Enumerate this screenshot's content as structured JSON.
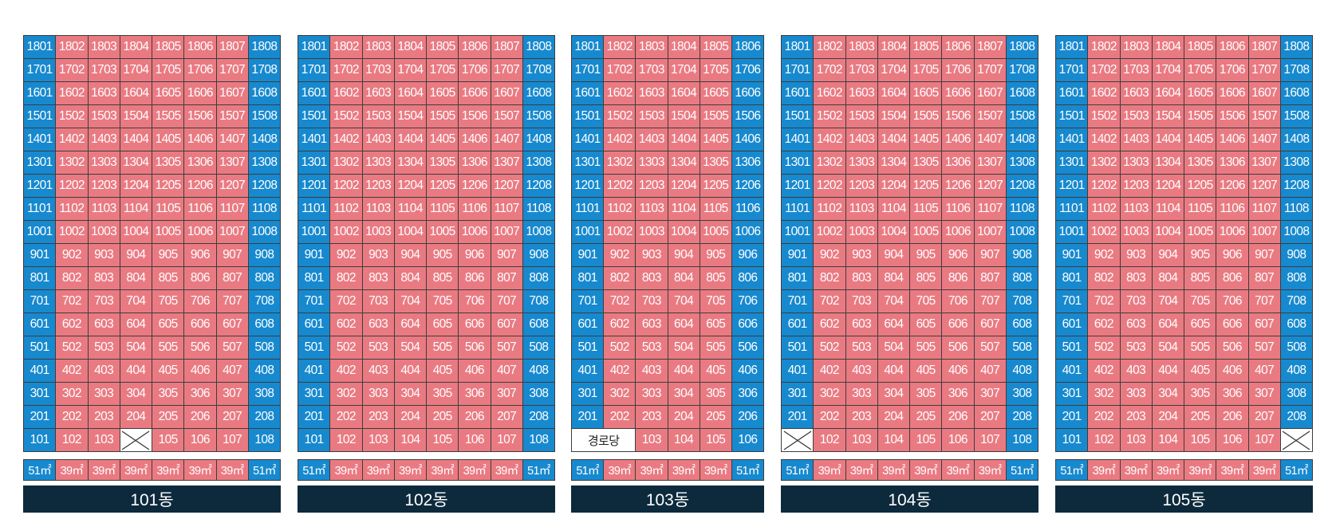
{
  "colors": {
    "end_unit": "#1789cf",
    "middle_unit": "#ea7a82",
    "label_bar": "#0d2a3c"
  },
  "buildings": [
    {
      "name": "101동",
      "sizes": [
        "51㎡",
        "39㎡",
        "39㎡",
        "39㎡",
        "39㎡",
        "39㎡",
        "39㎡",
        "51㎡"
      ],
      "rows": [
        [
          "1801",
          "1802",
          "1803",
          "1804",
          "1805",
          "1806",
          "1807",
          "1808"
        ],
        [
          "1701",
          "1702",
          "1703",
          "1704",
          "1705",
          "1706",
          "1707",
          "1708"
        ],
        [
          "1601",
          "1602",
          "1603",
          "1604",
          "1605",
          "1606",
          "1607",
          "1608"
        ],
        [
          "1501",
          "1502",
          "1503",
          "1504",
          "1505",
          "1506",
          "1507",
          "1508"
        ],
        [
          "1401",
          "1402",
          "1403",
          "1404",
          "1405",
          "1406",
          "1407",
          "1408"
        ],
        [
          "1301",
          "1302",
          "1303",
          "1304",
          "1305",
          "1306",
          "1307",
          "1308"
        ],
        [
          "1201",
          "1202",
          "1203",
          "1204",
          "1205",
          "1206",
          "1207",
          "1208"
        ],
        [
          "1101",
          "1102",
          "1103",
          "1104",
          "1105",
          "1106",
          "1107",
          "1108"
        ],
        [
          "1001",
          "1002",
          "1003",
          "1004",
          "1005",
          "1006",
          "1007",
          "1008"
        ],
        [
          "901",
          "902",
          "903",
          "904",
          "905",
          "906",
          "907",
          "908"
        ],
        [
          "801",
          "802",
          "803",
          "804",
          "805",
          "806",
          "807",
          "808"
        ],
        [
          "701",
          "702",
          "703",
          "704",
          "705",
          "706",
          "707",
          "708"
        ],
        [
          "601",
          "602",
          "603",
          "604",
          "605",
          "606",
          "607",
          "608"
        ],
        [
          "501",
          "502",
          "503",
          "504",
          "505",
          "506",
          "507",
          "508"
        ],
        [
          "401",
          "402",
          "403",
          "404",
          "405",
          "406",
          "407",
          "408"
        ],
        [
          "301",
          "302",
          "303",
          "304",
          "305",
          "306",
          "307",
          "308"
        ],
        [
          "201",
          "202",
          "203",
          "204",
          "205",
          "206",
          "207",
          "208"
        ],
        [
          "101",
          "102",
          "103",
          "X",
          "105",
          "106",
          "107",
          "108"
        ]
      ]
    },
    {
      "name": "102동",
      "sizes": [
        "51㎡",
        "39㎡",
        "39㎡",
        "39㎡",
        "39㎡",
        "39㎡",
        "39㎡",
        "51㎡"
      ],
      "rows": [
        [
          "1801",
          "1802",
          "1803",
          "1804",
          "1805",
          "1806",
          "1807",
          "1808"
        ],
        [
          "1701",
          "1702",
          "1703",
          "1704",
          "1705",
          "1706",
          "1707",
          "1708"
        ],
        [
          "1601",
          "1602",
          "1603",
          "1604",
          "1605",
          "1606",
          "1607",
          "1608"
        ],
        [
          "1501",
          "1502",
          "1503",
          "1504",
          "1505",
          "1506",
          "1507",
          "1508"
        ],
        [
          "1401",
          "1402",
          "1403",
          "1404",
          "1405",
          "1406",
          "1407",
          "1408"
        ],
        [
          "1301",
          "1302",
          "1303",
          "1304",
          "1305",
          "1306",
          "1307",
          "1308"
        ],
        [
          "1201",
          "1202",
          "1203",
          "1204",
          "1205",
          "1206",
          "1207",
          "1208"
        ],
        [
          "1101",
          "1102",
          "1103",
          "1104",
          "1105",
          "1106",
          "1107",
          "1108"
        ],
        [
          "1001",
          "1002",
          "1003",
          "1004",
          "1005",
          "1006",
          "1007",
          "1008"
        ],
        [
          "901",
          "902",
          "903",
          "904",
          "905",
          "906",
          "907",
          "908"
        ],
        [
          "801",
          "802",
          "803",
          "804",
          "805",
          "806",
          "807",
          "808"
        ],
        [
          "701",
          "702",
          "703",
          "704",
          "705",
          "706",
          "707",
          "708"
        ],
        [
          "601",
          "602",
          "603",
          "604",
          "605",
          "606",
          "607",
          "608"
        ],
        [
          "501",
          "502",
          "503",
          "504",
          "505",
          "506",
          "507",
          "508"
        ],
        [
          "401",
          "402",
          "403",
          "404",
          "405",
          "406",
          "407",
          "408"
        ],
        [
          "301",
          "302",
          "303",
          "304",
          "305",
          "306",
          "307",
          "308"
        ],
        [
          "201",
          "202",
          "203",
          "204",
          "205",
          "206",
          "207",
          "208"
        ],
        [
          "101",
          "102",
          "103",
          "104",
          "105",
          "106",
          "107",
          "108"
        ]
      ]
    },
    {
      "name": "103동",
      "sizes": [
        "51㎡",
        "39㎡",
        "39㎡",
        "39㎡",
        "39㎡",
        "51㎡"
      ],
      "rows": [
        [
          "1801",
          "1802",
          "1803",
          "1804",
          "1805",
          "1806"
        ],
        [
          "1701",
          "1702",
          "1703",
          "1704",
          "1705",
          "1706"
        ],
        [
          "1601",
          "1602",
          "1603",
          "1604",
          "1605",
          "1606"
        ],
        [
          "1501",
          "1502",
          "1503",
          "1504",
          "1505",
          "1506"
        ],
        [
          "1401",
          "1402",
          "1403",
          "1404",
          "1405",
          "1406"
        ],
        [
          "1301",
          "1302",
          "1303",
          "1304",
          "1305",
          "1306"
        ],
        [
          "1201",
          "1202",
          "1203",
          "1204",
          "1205",
          "1206"
        ],
        [
          "1101",
          "1102",
          "1103",
          "1104",
          "1105",
          "1106"
        ],
        [
          "1001",
          "1002",
          "1003",
          "1004",
          "1005",
          "1006"
        ],
        [
          "901",
          "902",
          "903",
          "904",
          "905",
          "906"
        ],
        [
          "801",
          "802",
          "803",
          "804",
          "805",
          "806"
        ],
        [
          "701",
          "702",
          "703",
          "704",
          "705",
          "706"
        ],
        [
          "601",
          "602",
          "603",
          "604",
          "605",
          "606"
        ],
        [
          "501",
          "502",
          "503",
          "504",
          "505",
          "506"
        ],
        [
          "401",
          "402",
          "403",
          "404",
          "405",
          "406"
        ],
        [
          "301",
          "302",
          "303",
          "304",
          "305",
          "306"
        ],
        [
          "201",
          "202",
          "203",
          "204",
          "205",
          "206"
        ],
        [
          "경로당",
          "103",
          "104",
          "105",
          "106"
        ]
      ]
    },
    {
      "name": "104동",
      "sizes": [
        "51㎡",
        "39㎡",
        "39㎡",
        "39㎡",
        "39㎡",
        "39㎡",
        "39㎡",
        "51㎡"
      ],
      "rows": [
        [
          "1801",
          "1802",
          "1803",
          "1804",
          "1805",
          "1806",
          "1807",
          "1808"
        ],
        [
          "1701",
          "1702",
          "1703",
          "1704",
          "1705",
          "1706",
          "1707",
          "1708"
        ],
        [
          "1601",
          "1602",
          "1603",
          "1604",
          "1605",
          "1606",
          "1607",
          "1608"
        ],
        [
          "1501",
          "1502",
          "1503",
          "1504",
          "1505",
          "1506",
          "1507",
          "1508"
        ],
        [
          "1401",
          "1402",
          "1403",
          "1404",
          "1405",
          "1406",
          "1407",
          "1408"
        ],
        [
          "1301",
          "1302",
          "1303",
          "1304",
          "1305",
          "1306",
          "1307",
          "1308"
        ],
        [
          "1201",
          "1202",
          "1203",
          "1204",
          "1205",
          "1206",
          "1207",
          "1208"
        ],
        [
          "1101",
          "1102",
          "1103",
          "1104",
          "1105",
          "1106",
          "1107",
          "1108"
        ],
        [
          "1001",
          "1002",
          "1003",
          "1004",
          "1005",
          "1006",
          "1007",
          "1008"
        ],
        [
          "901",
          "902",
          "903",
          "904",
          "905",
          "906",
          "907",
          "908"
        ],
        [
          "801",
          "802",
          "803",
          "804",
          "805",
          "806",
          "807",
          "808"
        ],
        [
          "701",
          "702",
          "703",
          "704",
          "705",
          "706",
          "707",
          "708"
        ],
        [
          "601",
          "602",
          "603",
          "604",
          "605",
          "606",
          "607",
          "608"
        ],
        [
          "501",
          "502",
          "503",
          "504",
          "505",
          "506",
          "507",
          "508"
        ],
        [
          "401",
          "402",
          "403",
          "404",
          "405",
          "406",
          "407",
          "408"
        ],
        [
          "301",
          "302",
          "303",
          "304",
          "305",
          "306",
          "307",
          "308"
        ],
        [
          "201",
          "202",
          "203",
          "204",
          "205",
          "206",
          "207",
          "208"
        ],
        [
          "X",
          "102",
          "103",
          "104",
          "105",
          "106",
          "107",
          "108"
        ]
      ]
    },
    {
      "name": "105동",
      "sizes": [
        "51㎡",
        "39㎡",
        "39㎡",
        "39㎡",
        "39㎡",
        "39㎡",
        "39㎡",
        "51㎡"
      ],
      "rows": [
        [
          "1801",
          "1802",
          "1803",
          "1804",
          "1805",
          "1806",
          "1807",
          "1808"
        ],
        [
          "1701",
          "1702",
          "1703",
          "1704",
          "1705",
          "1706",
          "1707",
          "1708"
        ],
        [
          "1601",
          "1602",
          "1603",
          "1604",
          "1605",
          "1606",
          "1607",
          "1608"
        ],
        [
          "1501",
          "1502",
          "1503",
          "1504",
          "1505",
          "1506",
          "1507",
          "1508"
        ],
        [
          "1401",
          "1402",
          "1403",
          "1404",
          "1405",
          "1406",
          "1407",
          "1408"
        ],
        [
          "1301",
          "1302",
          "1303",
          "1304",
          "1305",
          "1306",
          "1307",
          "1308"
        ],
        [
          "1201",
          "1202",
          "1203",
          "1204",
          "1205",
          "1206",
          "1207",
          "1208"
        ],
        [
          "1101",
          "1102",
          "1103",
          "1104",
          "1105",
          "1106",
          "1107",
          "1108"
        ],
        [
          "1001",
          "1002",
          "1003",
          "1004",
          "1005",
          "1006",
          "1007",
          "1008"
        ],
        [
          "901",
          "902",
          "903",
          "904",
          "905",
          "906",
          "907",
          "908"
        ],
        [
          "801",
          "802",
          "803",
          "804",
          "805",
          "806",
          "807",
          "808"
        ],
        [
          "701",
          "702",
          "703",
          "704",
          "705",
          "706",
          "707",
          "708"
        ],
        [
          "601",
          "602",
          "603",
          "604",
          "605",
          "606",
          "607",
          "608"
        ],
        [
          "501",
          "502",
          "503",
          "504",
          "505",
          "506",
          "507",
          "508"
        ],
        [
          "401",
          "402",
          "403",
          "404",
          "405",
          "406",
          "407",
          "408"
        ],
        [
          "301",
          "302",
          "303",
          "304",
          "305",
          "306",
          "307",
          "308"
        ],
        [
          "201",
          "202",
          "203",
          "204",
          "205",
          "206",
          "207",
          "208"
        ],
        [
          "101",
          "102",
          "103",
          "104",
          "105",
          "106",
          "107",
          "X"
        ]
      ]
    }
  ]
}
